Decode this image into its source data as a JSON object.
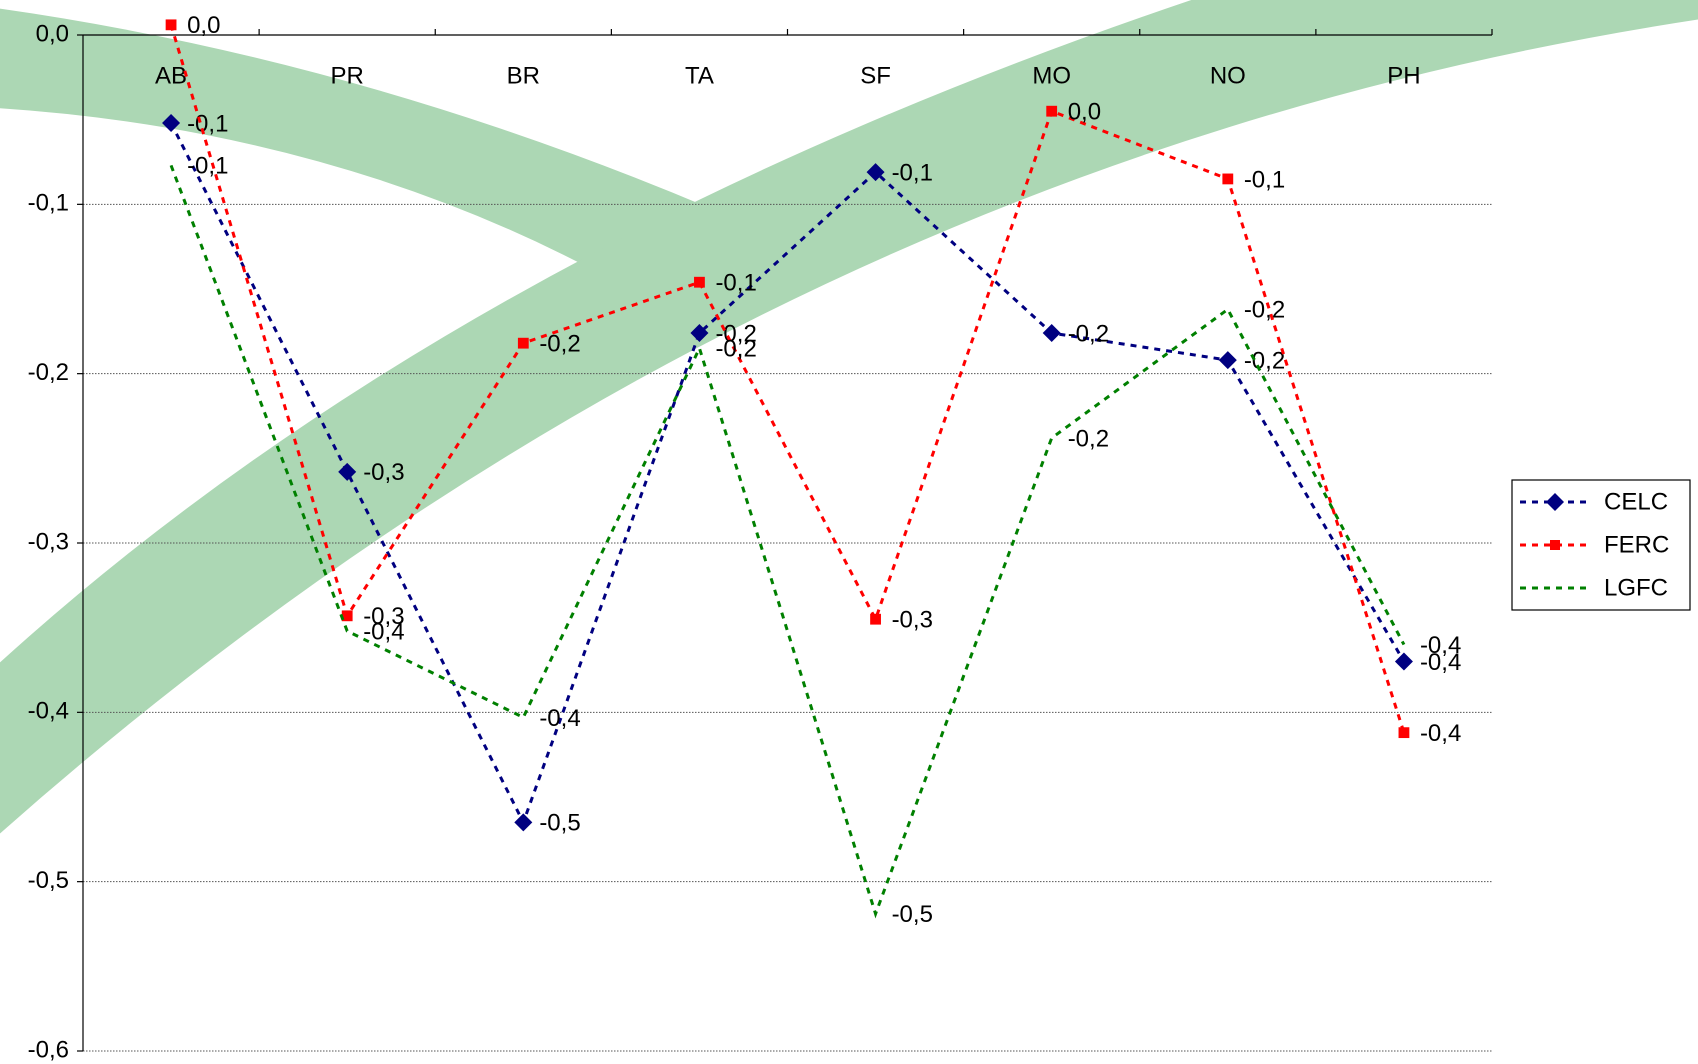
{
  "chart_data": {
    "type": "line",
    "categories": [
      "AB",
      "PR",
      "BR",
      "TA",
      "SF",
      "MO",
      "NO",
      "PH"
    ],
    "series": [
      {
        "name": "CELC",
        "color": "#000080",
        "marker": "diamond",
        "values": [
          -0.052,
          -0.258,
          -0.465,
          -0.176,
          -0.081,
          -0.176,
          -0.192,
          -0.37
        ],
        "value_labels": [
          "-0,1",
          "-0,3",
          "-0,5",
          "-0,2",
          "-0,1",
          "-0,2",
          "-0,2",
          "-0,4"
        ]
      },
      {
        "name": "FERC",
        "color": "#ff0000",
        "marker": "square",
        "values": [
          0.006,
          -0.343,
          -0.182,
          -0.146,
          -0.345,
          -0.045,
          -0.085,
          -0.412
        ],
        "value_labels": [
          "0,0",
          "-0,3",
          "-0,2",
          "-0,1",
          "-0,3",
          "0,0",
          "-0,1",
          "-0,4"
        ]
      },
      {
        "name": "LGFC",
        "color": "#008000",
        "marker": "none",
        "values": [
          -0.077,
          -0.352,
          -0.403,
          -0.185,
          -0.519,
          -0.238,
          -0.162,
          -0.36
        ],
        "value_labels": [
          "-0,1",
          "-0,4",
          "-0,4",
          "-0,2",
          "-0,5",
          "-0,2",
          "-0,2",
          "-0,4"
        ]
      }
    ],
    "ylim": [
      -0.6,
      0
    ],
    "yticks": [
      {
        "value": 0,
        "label": "0,0"
      },
      {
        "value": -0.1,
        "label": "-0,1"
      },
      {
        "value": -0.2,
        "label": "-0,2"
      },
      {
        "value": -0.3,
        "label": "-0,3"
      },
      {
        "value": -0.4,
        "label": "-0,4"
      },
      {
        "value": -0.5,
        "label": "-0,5"
      },
      {
        "value": -0.6,
        "label": "-0,6"
      }
    ],
    "grid": true,
    "legend": "right"
  }
}
